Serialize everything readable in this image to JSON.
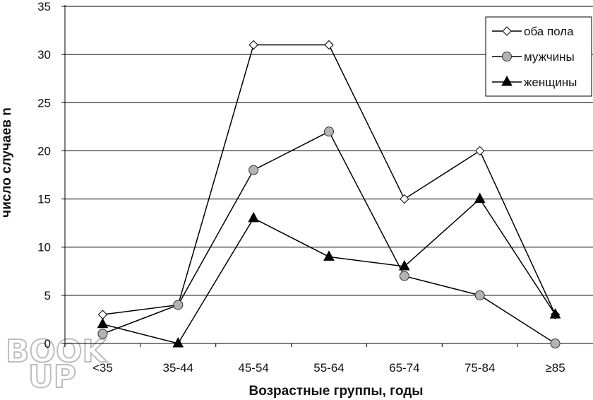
{
  "chart_data": {
    "type": "line",
    "categories": [
      "<35",
      "35-44",
      "45-54",
      "55-64",
      "65-74",
      "75-84",
      "≥85"
    ],
    "series": [
      {
        "name": "оба пола",
        "values": [
          3,
          4,
          31,
          31,
          15,
          20,
          3
        ],
        "marker": "diamond-open"
      },
      {
        "name": "мужчины",
        "values": [
          1,
          4,
          18,
          22,
          7,
          5,
          0
        ],
        "marker": "circle-gray"
      },
      {
        "name": "женщины",
        "values": [
          2,
          0,
          13,
          9,
          8,
          15,
          3
        ],
        "marker": "triangle-black"
      }
    ],
    "title": "",
    "xlabel": "Возрастные группы, годы",
    "ylabel": "число случаев n",
    "ylim": [
      0,
      35
    ],
    "yticks": [
      0,
      5,
      10,
      15,
      20,
      25,
      30,
      35
    ],
    "grid": true,
    "legend_position": "top-right"
  },
  "watermark": {
    "line1": "BOOK",
    "line2": "UP"
  },
  "colors": {
    "line": "#000000",
    "grid": "#000000",
    "circle_fill": "#b3b3b3",
    "watermark": "#bdbdbd"
  }
}
